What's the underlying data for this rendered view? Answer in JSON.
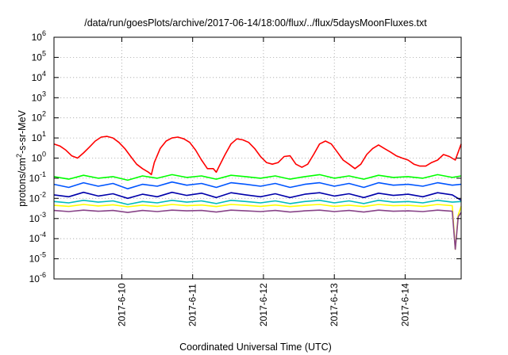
{
  "chart_data": {
    "type": "line",
    "title": "/data/run/goesPlots/archive/2017-06-14/18:00/flux/../flux/5daysMoonFluxes.txt",
    "xlabel": "Coordinated Universal Time (UTC)",
    "ylabel": "protons/cm2-s-sr-MeV",
    "ylabel_parts": {
      "pre": "protons/cm",
      "sup": "2",
      "post": "-s-sr-MeV"
    },
    "yscale": "log",
    "ylim": [
      1e-06,
      1000000.0
    ],
    "xlim": [
      "2017-06-09 01:00",
      "2017-06-14 19:00"
    ],
    "ytick_values": [
      1e-06,
      1e-05,
      0.0001,
      0.001,
      0.01,
      0.1,
      1.0,
      10.0,
      100.0,
      1000.0,
      10000.0,
      100000.0,
      1000000.0
    ],
    "ytick_labels": [
      {
        "base": "10",
        "exp": "-6"
      },
      {
        "base": "10",
        "exp": "-5"
      },
      {
        "base": "10",
        "exp": "-4"
      },
      {
        "base": "10",
        "exp": "-3"
      },
      {
        "base": "10",
        "exp": "-2"
      },
      {
        "base": "10",
        "exp": "-1"
      },
      {
        "base": "10",
        "exp": "0"
      },
      {
        "base": "10",
        "exp": "1"
      },
      {
        "base": "10",
        "exp": "2"
      },
      {
        "base": "10",
        "exp": "3"
      },
      {
        "base": "10",
        "exp": "4"
      },
      {
        "base": "10",
        "exp": "5"
      },
      {
        "base": "10",
        "exp": "6"
      }
    ],
    "xtick_values": [
      "2017-06-10 00:00",
      "2017-06-11 00:00",
      "2017-06-12 00:00",
      "2017-06-13 00:00",
      "2017-06-14 00:00"
    ],
    "xtick_labels": [
      "2017-6-10",
      "2017-6-11",
      "2017-6-12",
      "2017-6-13",
      "2017-6-14"
    ],
    "grid": true,
    "legend": "none",
    "series": [
      {
        "color": "#ff0000",
        "x": [
          "2017-06-09 01:00",
          "2017-06-09 03:00",
          "2017-06-09 05:00",
          "2017-06-09 07:00",
          "2017-06-09 09:00",
          "2017-06-09 11:00",
          "2017-06-09 13:00",
          "2017-06-09 15:00",
          "2017-06-09 17:00",
          "2017-06-09 19:00",
          "2017-06-09 21:00",
          "2017-06-09 23:00",
          "2017-06-10 01:00",
          "2017-06-10 03:00",
          "2017-06-10 05:00",
          "2017-06-10 07:00",
          "2017-06-10 09:00",
          "2017-06-10 10:00",
          "2017-06-10 11:00",
          "2017-06-10 13:00",
          "2017-06-10 15:00",
          "2017-06-10 17:00",
          "2017-06-10 19:00",
          "2017-06-10 21:00",
          "2017-06-10 23:00",
          "2017-06-11 01:00",
          "2017-06-11 03:00",
          "2017-06-11 05:00",
          "2017-06-11 07:00",
          "2017-06-11 08:00",
          "2017-06-11 09:00",
          "2017-06-11 11:00",
          "2017-06-11 13:00",
          "2017-06-11 15:00",
          "2017-06-11 17:00",
          "2017-06-11 19:00",
          "2017-06-11 21:00",
          "2017-06-11 23:00",
          "2017-06-12 01:00",
          "2017-06-12 03:00",
          "2017-06-12 05:00",
          "2017-06-12 07:00",
          "2017-06-12 09:00",
          "2017-06-12 11:00",
          "2017-06-12 13:00",
          "2017-06-12 15:00",
          "2017-06-12 17:00",
          "2017-06-12 19:00",
          "2017-06-12 21:00",
          "2017-06-12 23:00",
          "2017-06-13 01:00",
          "2017-06-13 03:00",
          "2017-06-13 05:00",
          "2017-06-13 07:00",
          "2017-06-13 09:00",
          "2017-06-13 11:00",
          "2017-06-13 13:00",
          "2017-06-13 15:00",
          "2017-06-13 17:00",
          "2017-06-13 19:00",
          "2017-06-13 21:00",
          "2017-06-13 23:00",
          "2017-06-14 01:00",
          "2017-06-14 03:00",
          "2017-06-14 05:00",
          "2017-06-14 07:00",
          "2017-06-14 09:00",
          "2017-06-14 11:00",
          "2017-06-14 13:00",
          "2017-06-14 15:00",
          "2017-06-14 17:00",
          "2017-06-14 19:00"
        ],
        "y": [
          5,
          4,
          2.5,
          1.3,
          1,
          1.8,
          3.5,
          7,
          11,
          12,
          10,
          6,
          3,
          1.2,
          0.5,
          0.3,
          0.2,
          0.15,
          0.6,
          3,
          7,
          10,
          11,
          9,
          6,
          2.5,
          0.8,
          0.3,
          0.3,
          0.2,
          0.4,
          1.5,
          5,
          9,
          8,
          6,
          3,
          1.2,
          0.6,
          0.5,
          0.6,
          1.2,
          1.3,
          0.5,
          0.35,
          0.5,
          1.5,
          5,
          7,
          5,
          2,
          0.8,
          0.5,
          0.3,
          0.5,
          1.5,
          3,
          4.5,
          3,
          2,
          1.3,
          1,
          0.8,
          0.5,
          0.4,
          0.4,
          0.6,
          0.8,
          1.5,
          1.2,
          0.8,
          5
        ]
      },
      {
        "color": "#00ff00",
        "x": [
          "2017-06-09 01:00",
          "2017-06-09 06:00",
          "2017-06-09 11:00",
          "2017-06-09 16:00",
          "2017-06-09 21:00",
          "2017-06-10 02:00",
          "2017-06-10 07:00",
          "2017-06-10 12:00",
          "2017-06-10 17:00",
          "2017-06-10 22:00",
          "2017-06-11 03:00",
          "2017-06-11 08:00",
          "2017-06-11 13:00",
          "2017-06-11 18:00",
          "2017-06-11 23:00",
          "2017-06-12 04:00",
          "2017-06-12 09:00",
          "2017-06-12 14:00",
          "2017-06-12 19:00",
          "2017-06-13 00:00",
          "2017-06-13 05:00",
          "2017-06-13 10:00",
          "2017-06-13 15:00",
          "2017-06-13 20:00",
          "2017-06-14 01:00",
          "2017-06-14 06:00",
          "2017-06-14 11:00",
          "2017-06-14 16:00",
          "2017-06-14 19:00"
        ],
        "y": [
          0.12,
          0.09,
          0.14,
          0.1,
          0.12,
          0.08,
          0.13,
          0.1,
          0.15,
          0.11,
          0.13,
          0.09,
          0.14,
          0.12,
          0.1,
          0.13,
          0.09,
          0.12,
          0.15,
          0.1,
          0.13,
          0.09,
          0.14,
          0.11,
          0.12,
          0.1,
          0.15,
          0.11,
          0.13
        ]
      },
      {
        "color": "#0055ff",
        "x": [
          "2017-06-09 01:00",
          "2017-06-09 06:00",
          "2017-06-09 11:00",
          "2017-06-09 16:00",
          "2017-06-09 21:00",
          "2017-06-10 02:00",
          "2017-06-10 07:00",
          "2017-06-10 12:00",
          "2017-06-10 17:00",
          "2017-06-10 22:00",
          "2017-06-11 03:00",
          "2017-06-11 08:00",
          "2017-06-11 13:00",
          "2017-06-11 18:00",
          "2017-06-11 23:00",
          "2017-06-12 04:00",
          "2017-06-12 09:00",
          "2017-06-12 14:00",
          "2017-06-12 19:00",
          "2017-06-13 00:00",
          "2017-06-13 05:00",
          "2017-06-13 10:00",
          "2017-06-13 15:00",
          "2017-06-13 20:00",
          "2017-06-14 01:00",
          "2017-06-14 06:00",
          "2017-06-14 11:00",
          "2017-06-14 16:00",
          "2017-06-14 19:00"
        ],
        "y": [
          0.05,
          0.035,
          0.06,
          0.04,
          0.055,
          0.03,
          0.05,
          0.04,
          0.065,
          0.045,
          0.055,
          0.035,
          0.06,
          0.05,
          0.04,
          0.055,
          0.035,
          0.05,
          0.06,
          0.04,
          0.055,
          0.035,
          0.06,
          0.045,
          0.05,
          0.04,
          0.06,
          0.045,
          0.05
        ]
      },
      {
        "color": "#0000aa",
        "x": [
          "2017-06-09 01:00",
          "2017-06-09 06:00",
          "2017-06-09 11:00",
          "2017-06-09 16:00",
          "2017-06-09 21:00",
          "2017-06-10 02:00",
          "2017-06-10 07:00",
          "2017-06-10 12:00",
          "2017-06-10 17:00",
          "2017-06-10 22:00",
          "2017-06-11 03:00",
          "2017-06-11 08:00",
          "2017-06-11 13:00",
          "2017-06-11 18:00",
          "2017-06-11 23:00",
          "2017-06-12 04:00",
          "2017-06-12 09:00",
          "2017-06-12 14:00",
          "2017-06-12 19:00",
          "2017-06-13 00:00",
          "2017-06-13 05:00",
          "2017-06-13 10:00",
          "2017-06-13 15:00",
          "2017-06-13 20:00",
          "2017-06-14 01:00",
          "2017-06-14 06:00",
          "2017-06-14 11:00",
          "2017-06-14 16:00",
          "2017-06-14 19:00"
        ],
        "y": [
          0.015,
          0.012,
          0.02,
          0.013,
          0.017,
          0.01,
          0.016,
          0.012,
          0.02,
          0.014,
          0.018,
          0.011,
          0.019,
          0.015,
          0.012,
          0.017,
          0.011,
          0.016,
          0.019,
          0.013,
          0.017,
          0.011,
          0.018,
          0.014,
          0.016,
          0.012,
          0.019,
          0.015,
          0.008
        ]
      },
      {
        "color": "#00bbbb",
        "x": [
          "2017-06-09 01:00",
          "2017-06-09 06:00",
          "2017-06-09 11:00",
          "2017-06-09 16:00",
          "2017-06-09 21:00",
          "2017-06-10 02:00",
          "2017-06-10 07:00",
          "2017-06-10 12:00",
          "2017-06-10 17:00",
          "2017-06-10 22:00",
          "2017-06-11 03:00",
          "2017-06-11 08:00",
          "2017-06-11 13:00",
          "2017-06-11 18:00",
          "2017-06-11 23:00",
          "2017-06-12 04:00",
          "2017-06-12 09:00",
          "2017-06-12 14:00",
          "2017-06-12 19:00",
          "2017-06-13 00:00",
          "2017-06-13 05:00",
          "2017-06-13 10:00",
          "2017-06-13 15:00",
          "2017-06-13 20:00",
          "2017-06-14 01:00",
          "2017-06-14 06:00",
          "2017-06-14 11:00",
          "2017-06-14 16:00",
          "2017-06-14 19:00"
        ],
        "y": [
          0.007,
          0.006,
          0.008,
          0.0065,
          0.0075,
          0.005,
          0.007,
          0.006,
          0.008,
          0.0065,
          0.0075,
          0.0055,
          0.008,
          0.007,
          0.006,
          0.0075,
          0.0055,
          0.007,
          0.008,
          0.006,
          0.0075,
          0.0055,
          0.008,
          0.0065,
          0.007,
          0.006,
          0.008,
          0.0065,
          0.007
        ]
      },
      {
        "color": "#ffff00",
        "x": [
          "2017-06-09 01:00",
          "2017-06-09 06:00",
          "2017-06-09 11:00",
          "2017-06-09 16:00",
          "2017-06-09 21:00",
          "2017-06-10 02:00",
          "2017-06-10 07:00",
          "2017-06-10 12:00",
          "2017-06-10 17:00",
          "2017-06-10 22:00",
          "2017-06-11 03:00",
          "2017-06-11 08:00",
          "2017-06-11 13:00",
          "2017-06-11 18:00",
          "2017-06-11 23:00",
          "2017-06-12 04:00",
          "2017-06-12 09:00",
          "2017-06-12 14:00",
          "2017-06-12 19:00",
          "2017-06-13 00:00",
          "2017-06-13 05:00",
          "2017-06-13 10:00",
          "2017-06-13 15:00",
          "2017-06-13 20:00",
          "2017-06-14 01:00",
          "2017-06-14 06:00",
          "2017-06-14 11:00",
          "2017-06-14 16:00",
          "2017-06-14 17:00",
          "2017-06-14 18:00",
          "2017-06-14 19:00"
        ],
        "y": [
          0.0045,
          0.004,
          0.005,
          0.0042,
          0.0048,
          0.0038,
          0.0046,
          0.004,
          0.005,
          0.0043,
          0.0047,
          0.0039,
          0.005,
          0.0045,
          0.004,
          0.0047,
          0.0039,
          0.0045,
          0.005,
          0.004,
          0.0046,
          0.0039,
          0.005,
          0.0043,
          0.0045,
          0.004,
          0.005,
          0.0043,
          3e-05,
          0.0015,
          0.004
        ]
      },
      {
        "color": "#884488",
        "x": [
          "2017-06-09 01:00",
          "2017-06-09 06:00",
          "2017-06-09 11:00",
          "2017-06-09 16:00",
          "2017-06-09 21:00",
          "2017-06-10 02:00",
          "2017-06-10 07:00",
          "2017-06-10 12:00",
          "2017-06-10 17:00",
          "2017-06-10 22:00",
          "2017-06-11 03:00",
          "2017-06-11 08:00",
          "2017-06-11 13:00",
          "2017-06-11 18:00",
          "2017-06-11 23:00",
          "2017-06-12 04:00",
          "2017-06-12 09:00",
          "2017-06-12 14:00",
          "2017-06-12 19:00",
          "2017-06-13 00:00",
          "2017-06-13 05:00",
          "2017-06-13 10:00",
          "2017-06-13 15:00",
          "2017-06-13 20:00",
          "2017-06-14 01:00",
          "2017-06-14 06:00",
          "2017-06-14 11:00",
          "2017-06-14 16:00",
          "2017-06-14 17:00",
          "2017-06-14 18:00",
          "2017-06-14 19:00"
        ],
        "y": [
          0.0025,
          0.0022,
          0.0026,
          0.0023,
          0.0025,
          0.002,
          0.0025,
          0.0022,
          0.0026,
          0.0024,
          0.0025,
          0.0021,
          0.0026,
          0.0024,
          0.0022,
          0.0025,
          0.0021,
          0.0024,
          0.0026,
          0.0022,
          0.0025,
          0.0021,
          0.0026,
          0.0023,
          0.0024,
          0.0022,
          0.0026,
          0.0023,
          3e-05,
          0.0012,
          0.002
        ]
      }
    ]
  }
}
